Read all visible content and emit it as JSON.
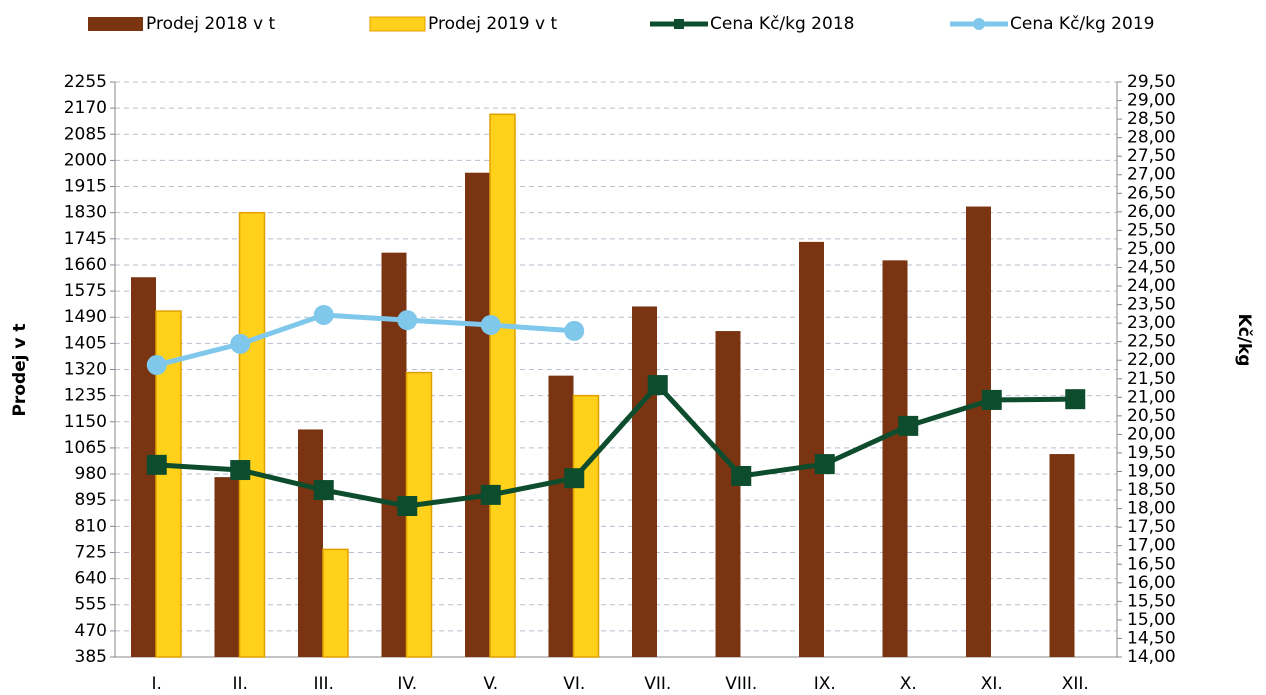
{
  "chart_data": {
    "type": "combo",
    "categories": [
      "I.",
      "II.",
      "III.",
      "IV.",
      "V.",
      "VI.",
      "VII.",
      "VIII.",
      "IX.",
      "X.",
      "XI.",
      "XII."
    ],
    "series": [
      {
        "name": "Prodej 2018 v t",
        "type": "bar",
        "color": "#7a3411",
        "values": [
          1620,
          970,
          1125,
          1700,
          1960,
          1300,
          1525,
          1445,
          1735,
          1675,
          1850,
          1045
        ]
      },
      {
        "name": "Prodej 2019 v t",
        "type": "bar",
        "color": "#ffd11a",
        "values": [
          1510,
          1830,
          735,
          1310,
          2150,
          1235,
          null,
          null,
          null,
          null,
          null,
          null
        ]
      },
      {
        "name": "Cena Kč/kg 2018",
        "type": "line",
        "axis": "y2",
        "marker": "square",
        "color": "#0d4d2e",
        "values": [
          19.18,
          19.04,
          18.5,
          18.07,
          18.37,
          18.82,
          21.33,
          18.88,
          19.2,
          20.23,
          20.93,
          20.95
        ]
      },
      {
        "name": "Cena Kč/kg 2019",
        "type": "line",
        "axis": "y2",
        "marker": "circle",
        "color": "#7fc8ec",
        "values": [
          21.87,
          22.44,
          23.22,
          23.08,
          22.95,
          22.79,
          null,
          null,
          null,
          null,
          null,
          null
        ]
      }
    ],
    "ylabel": "Prodej v t",
    "y2label": "Kč/kg",
    "ylim": [
      385,
      2255
    ],
    "yticks": [
      385,
      470,
      555,
      640,
      725,
      810,
      895,
      980,
      1065,
      1150,
      1235,
      1320,
      1405,
      1490,
      1575,
      1660,
      1745,
      1830,
      1915,
      2000,
      2085,
      2170,
      2255
    ],
    "y2lim": [
      14,
      29.5
    ],
    "y2ticks": [
      {
        "value": 14,
        "label": "14,00"
      },
      {
        "value": 14.5,
        "label": "14,50"
      },
      {
        "value": 15,
        "label": "15,00"
      },
      {
        "value": 15.5,
        "label": "15,50"
      },
      {
        "value": 16,
        "label": "16,00"
      },
      {
        "value": 16.5,
        "label": "16,50"
      },
      {
        "value": 17,
        "label": "17,00"
      },
      {
        "value": 17.5,
        "label": "17,50"
      },
      {
        "value": 18,
        "label": "18,00"
      },
      {
        "value": 18.5,
        "label": "18,50"
      },
      {
        "value": 19,
        "label": "19,00"
      },
      {
        "value": 19.5,
        "label": "19,50"
      },
      {
        "value": 20,
        "label": "20,00"
      },
      {
        "value": 20.5,
        "label": "20,50"
      },
      {
        "value": 21,
        "label": "21,00"
      },
      {
        "value": 21.5,
        "label": "21,50"
      },
      {
        "value": 22,
        "label": "22,00"
      },
      {
        "value": 22.5,
        "label": "22,50"
      },
      {
        "value": 23,
        "label": "23,00"
      },
      {
        "value": 23.5,
        "label": "23,50"
      },
      {
        "value": 24,
        "label": "24,00"
      },
      {
        "value": 24.5,
        "label": "24,50"
      },
      {
        "value": 25,
        "label": "25,00"
      },
      {
        "value": 25.5,
        "label": "25,50"
      },
      {
        "value": 26,
        "label": "26,00"
      },
      {
        "value": 26.5,
        "label": "26,50"
      },
      {
        "value": 27,
        "label": "27,00"
      },
      {
        "value": 27.5,
        "label": "27,50"
      },
      {
        "value": 28,
        "label": "28,00"
      },
      {
        "value": 28.5,
        "label": "28,50"
      },
      {
        "value": 29,
        "label": "29,00"
      },
      {
        "value": 29.5,
        "label": "29,50"
      }
    ],
    "grid": true,
    "legend": "top"
  }
}
